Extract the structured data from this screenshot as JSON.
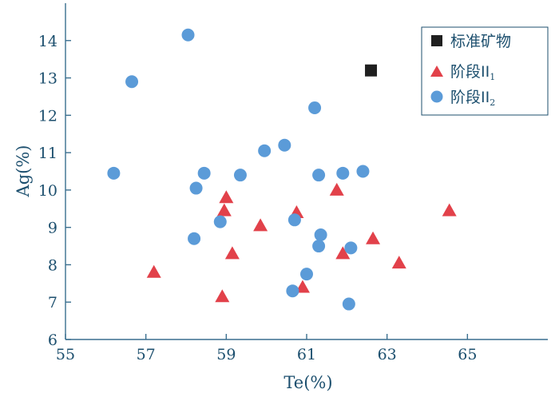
{
  "chart_data": {
    "type": "scatter",
    "title": "",
    "xlabel": "Te(%)",
    "ylabel": "Ag(%)",
    "xlim": [
      55,
      67
    ],
    "ylim": [
      6,
      15
    ],
    "xticks": [
      55,
      57,
      59,
      61,
      63,
      65
    ],
    "yticks": [
      6,
      7,
      8,
      9,
      10,
      11,
      12,
      13,
      14
    ],
    "grid": false,
    "legend_position": "top-right",
    "series": [
      {
        "name": "标准矿物",
        "marker": "square",
        "color": "#1f1f1f",
        "points": [
          [
            62.6,
            13.2
          ]
        ]
      },
      {
        "name": "阶段II",
        "subscript": "1",
        "marker": "triangle",
        "color": "#e2414a",
        "points": [
          [
            57.2,
            7.8
          ],
          [
            58.9,
            7.15
          ],
          [
            58.95,
            9.45
          ],
          [
            59.0,
            9.8
          ],
          [
            59.15,
            8.3
          ],
          [
            59.85,
            9.05
          ],
          [
            60.75,
            9.4
          ],
          [
            60.9,
            7.4
          ],
          [
            61.75,
            10.0
          ],
          [
            61.9,
            8.3
          ],
          [
            62.65,
            8.7
          ],
          [
            63.3,
            8.05
          ],
          [
            64.55,
            9.45
          ]
        ]
      },
      {
        "name": "阶段II",
        "subscript": "2",
        "marker": "circle",
        "color": "#5b9bd8",
        "points": [
          [
            56.2,
            10.45
          ],
          [
            56.65,
            12.9
          ],
          [
            58.05,
            14.15
          ],
          [
            58.2,
            8.7
          ],
          [
            58.25,
            10.05
          ],
          [
            58.45,
            10.45
          ],
          [
            58.85,
            9.15
          ],
          [
            59.35,
            10.4
          ],
          [
            59.95,
            11.05
          ],
          [
            60.45,
            11.2
          ],
          [
            60.7,
            9.2
          ],
          [
            60.65,
            7.3
          ],
          [
            61.0,
            7.75
          ],
          [
            61.2,
            12.2
          ],
          [
            61.3,
            10.4
          ],
          [
            61.35,
            8.8
          ],
          [
            61.3,
            8.5
          ],
          [
            61.9,
            10.45
          ],
          [
            62.1,
            8.45
          ],
          [
            62.05,
            6.95
          ],
          [
            62.4,
            10.5
          ]
        ]
      }
    ]
  }
}
